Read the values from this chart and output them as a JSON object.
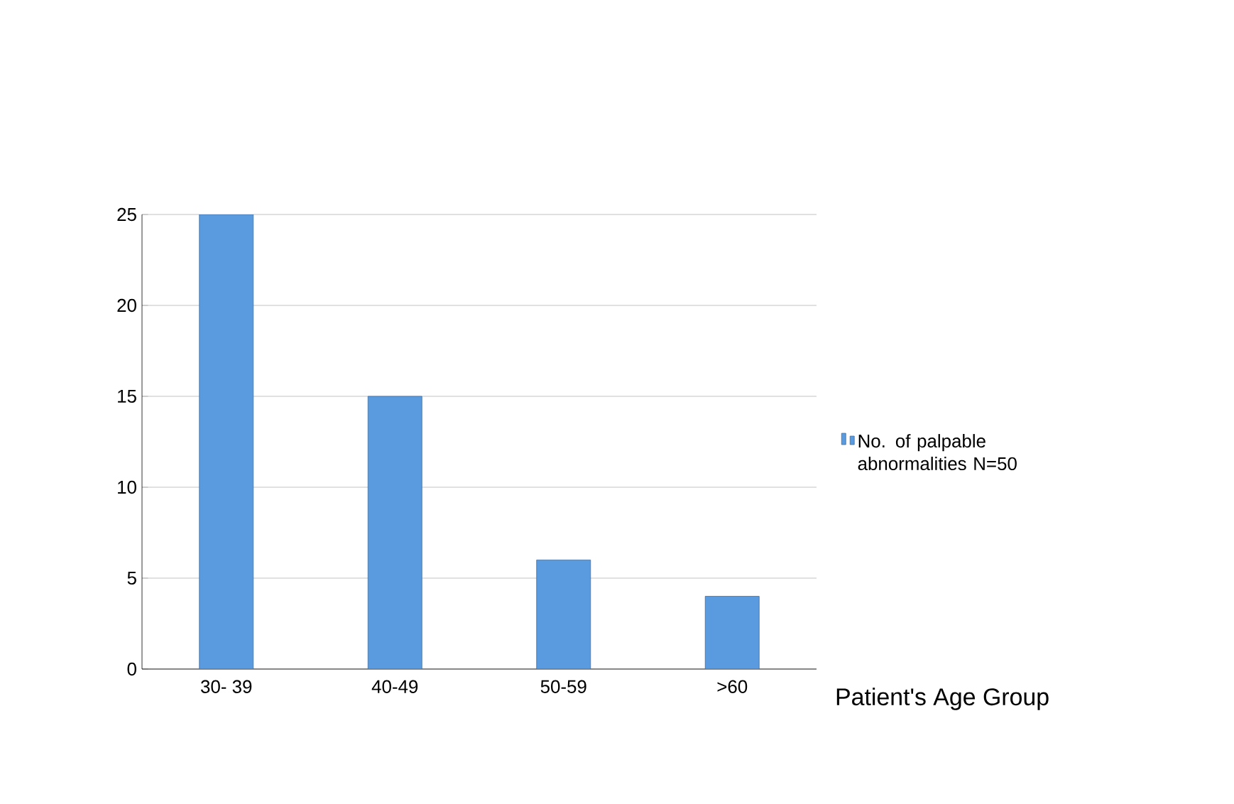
{
  "chart_data": {
    "type": "bar",
    "xlabel": "Patient's Age Group",
    "categories": [
      "30- 39",
      "40-49",
      "50-59",
      ">60"
    ],
    "series": [
      {
        "name": "No. of palpable abnormalities N=50",
        "color": "#5a9be0",
        "values": [
          25,
          15,
          6,
          4
        ]
      }
    ],
    "ylim": [
      0,
      25
    ],
    "yticks": [
      0,
      5,
      10,
      15,
      20,
      25
    ],
    "grid": "y",
    "legend": "right"
  }
}
